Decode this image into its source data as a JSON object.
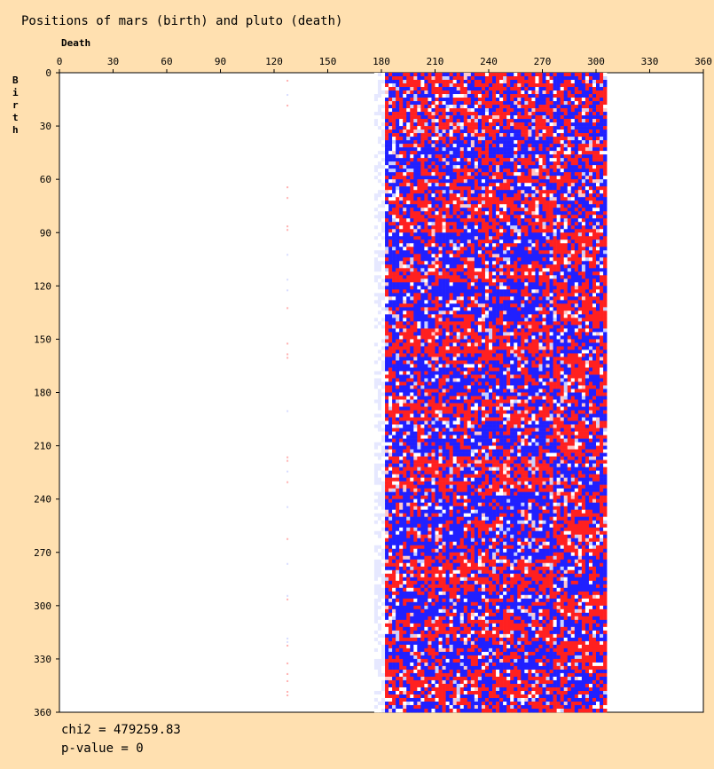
{
  "chart_data": {
    "type": "heatmap",
    "title": "Positions of mars (birth) and pluto (death)",
    "xlabel": "Death",
    "ylabel": "Birth",
    "x_ticks": [
      0,
      30,
      60,
      90,
      120,
      150,
      180,
      210,
      240,
      270,
      300,
      330,
      360
    ],
    "y_ticks": [
      0,
      30,
      60,
      90,
      120,
      150,
      180,
      210,
      240,
      270,
      300,
      330,
      360
    ],
    "xlim": [
      0,
      360
    ],
    "ylim": [
      0,
      360
    ],
    "populated_x_range": [
      176,
      306
    ],
    "sparse_column_x": 127,
    "colors": {
      "over_represented": "#ff2020",
      "under_represented": "#2020ff",
      "neutral": "#ffffff",
      "background": "#ffe0b0"
    },
    "row_bands": [
      {
        "y": [
          0,
          8
        ],
        "dominant": "red"
      },
      {
        "y": [
          8,
          20
        ],
        "dominant": "mixed"
      },
      {
        "y": [
          20,
          36
        ],
        "dominant": "red"
      },
      {
        "y": [
          36,
          54
        ],
        "dominant": "blue"
      },
      {
        "y": [
          54,
          70
        ],
        "dominant": "mixed"
      },
      {
        "y": [
          70,
          90
        ],
        "dominant": "red"
      },
      {
        "y": [
          90,
          108
        ],
        "dominant": "blue"
      },
      {
        "y": [
          108,
          118
        ],
        "dominant": "red"
      },
      {
        "y": [
          118,
          140
        ],
        "dominant": "blue"
      },
      {
        "y": [
          140,
          160
        ],
        "dominant": "red"
      },
      {
        "y": [
          160,
          182
        ],
        "dominant": "blue"
      },
      {
        "y": [
          182,
          196
        ],
        "dominant": "red"
      },
      {
        "y": [
          196,
          216
        ],
        "dominant": "blue"
      },
      {
        "y": [
          216,
          236
        ],
        "dominant": "red"
      },
      {
        "y": [
          236,
          272
        ],
        "dominant": "blue"
      },
      {
        "y": [
          272,
          292
        ],
        "dominant": "red"
      },
      {
        "y": [
          292,
          308
        ],
        "dominant": "blue"
      },
      {
        "y": [
          308,
          320
        ],
        "dominant": "red"
      },
      {
        "y": [
          320,
          336
        ],
        "dominant": "blue"
      },
      {
        "y": [
          336,
          352
        ],
        "dominant": "red"
      },
      {
        "y": [
          352,
          360
        ],
        "dominant": "mixed"
      }
    ]
  },
  "stats": {
    "chi2": "chi2 = 479259.83",
    "pvalue": "p-value = 0"
  }
}
